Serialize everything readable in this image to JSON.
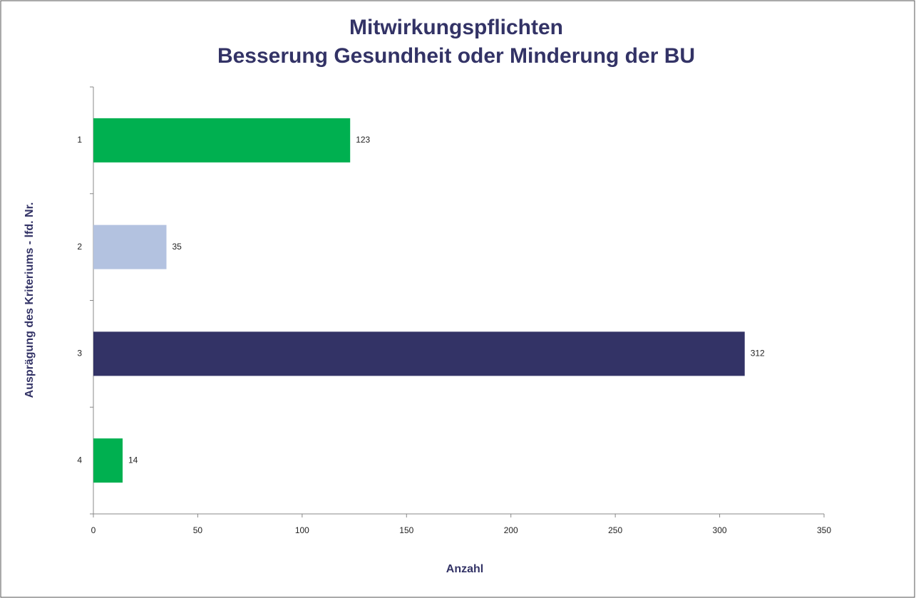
{
  "chart_data": {
    "type": "bar",
    "orientation": "horizontal",
    "title": [
      "Mitwirkungspflichten",
      "Besserung Gesundheit oder Minderung der BU"
    ],
    "categories": [
      "1",
      "2",
      "3",
      "4"
    ],
    "values": [
      123,
      35,
      312,
      14
    ],
    "colors": [
      "#00b050",
      "#b3c2e0",
      "#333366",
      "#00b050"
    ],
    "xlim": [
      0,
      350
    ],
    "xticks": [
      0,
      50,
      100,
      150,
      200,
      250,
      300,
      350
    ],
    "xlabel": "Anzahl",
    "ylabel": "Ausprägung des Kriteriums - lfd. Nr.",
    "grid": false
  }
}
